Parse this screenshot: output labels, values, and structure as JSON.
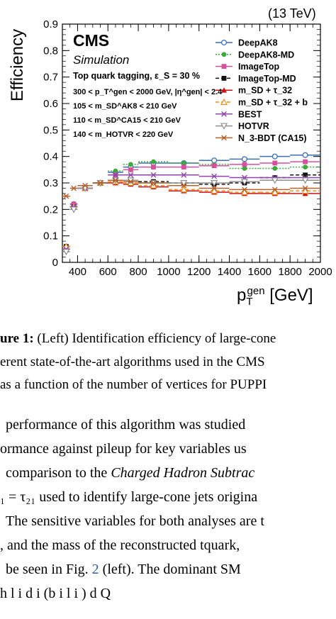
{
  "chart_data": {
    "type": "scatter",
    "energy_label": "(13 TeV)",
    "experiment": "CMS",
    "subtitle": "Simulation",
    "ylabel": "Efficiency",
    "xlabel_main": "p",
    "xlabel_sup": "gen",
    "xlabel_sub": "T",
    "xlabel_unit": "[GeV]",
    "xlim": [
      300,
      2000
    ],
    "ylim": [
      0,
      0.9
    ],
    "xticks": [
      400,
      600,
      800,
      1000,
      1200,
      1400,
      1600,
      1800,
      2000
    ],
    "yticks": [
      0,
      0.1,
      0.2,
      0.3,
      0.4,
      0.5,
      0.6,
      0.7,
      0.8,
      0.9
    ],
    "annotations": [
      "Top quark tagging,  ε_S = 30 %",
      "300 < p_T^gen < 2000 GeV, |η^gen| < 2.4",
      "105 < m_SD^AK8 < 210 GeV",
      "110 < m_SD^CA15 < 210 GeV",
      "140 < m_HOTVR < 220 GeV"
    ],
    "bins": [
      [
        300,
        350
      ],
      [
        350,
        400
      ],
      [
        400,
        500
      ],
      [
        500,
        600
      ],
      [
        600,
        700
      ],
      [
        700,
        800
      ],
      [
        800,
        1000
      ],
      [
        1000,
        1200
      ],
      [
        1200,
        1400
      ],
      [
        1400,
        1600
      ],
      [
        1600,
        1800
      ],
      [
        1800,
        2000
      ]
    ],
    "series": [
      {
        "name": "DeepAK8",
        "color": "#3a6fb5",
        "marker": "circle-open",
        "dash": "solid",
        "values": [
          0.05,
          0.22,
          0.28,
          0.3,
          0.34,
          0.36,
          0.375,
          0.375,
          0.385,
          0.39,
          0.4,
          0.405
        ]
      },
      {
        "name": "DeepAK8-MD",
        "color": "#3aaa3a",
        "marker": "circle-filled",
        "dash": "dotted",
        "values": [
          0.06,
          0.21,
          0.28,
          0.3,
          0.345,
          0.37,
          0.38,
          0.375,
          0.37,
          0.355,
          0.355,
          0.36
        ]
      },
      {
        "name": "ImageTop",
        "color": "#d94fa0",
        "marker": "square-filled",
        "dash": "solid",
        "values": [
          0.05,
          0.22,
          0.28,
          0.3,
          0.33,
          0.35,
          0.36,
          0.36,
          0.365,
          0.37,
          0.375,
          0.38
        ]
      },
      {
        "name": "ImageTop-MD",
        "color": "#111111",
        "marker": "square-filled",
        "dash": "dashed",
        "values": [
          0.06,
          0.21,
          0.28,
          0.3,
          0.31,
          0.31,
          0.305,
          0.3,
          0.295,
          0.3,
          0.32,
          0.33
        ]
      },
      {
        "name": "m_SD + τ_32",
        "color": "#d01010",
        "marker": "triangle-filled",
        "dash": "solid",
        "values": [
          0.06,
          0.21,
          0.28,
          0.3,
          0.3,
          0.295,
          0.285,
          0.27,
          0.265,
          0.26,
          0.26,
          0.26
        ]
      },
      {
        "name": "m_SD + τ_32 + b",
        "color": "#e89020",
        "marker": "triangle-open",
        "dash": "dashed",
        "values": [
          0.06,
          0.21,
          0.28,
          0.3,
          0.305,
          0.3,
          0.29,
          0.275,
          0.27,
          0.265,
          0.265,
          0.27
        ]
      },
      {
        "name": "BEST",
        "color": "#8e44ad",
        "marker": "cross",
        "dash": "solid",
        "values": [
          0.05,
          0.21,
          0.28,
          0.3,
          0.33,
          0.33,
          0.33,
          0.33,
          0.325,
          0.32,
          0.32,
          0.32
        ]
      },
      {
        "name": "HOTVR",
        "color": "#909090",
        "marker": "triangle-down-open",
        "dash": "solid",
        "values": [
          0.04,
          0.2,
          0.28,
          0.3,
          0.31,
          0.31,
          0.3,
          0.3,
          0.3,
          0.305,
          0.31,
          0.31
        ]
      },
      {
        "name": "N_3-BDT (CA15)",
        "color": "#b8612a",
        "marker": "cross",
        "dash": "solid",
        "values": [
          0.25,
          0.28,
          0.29,
          0.3,
          0.31,
          0.305,
          0.3,
          0.29,
          0.28,
          0.275,
          0.275,
          0.28
        ]
      }
    ],
    "legend": "top-right"
  },
  "caption": {
    "label": "ure 1:",
    "line1": " (Left) Identification efficiency of large-cone",
    "line2": "erent state-of-the-art algorithms used in the CMS",
    "line3": "as a function of the number of vertices for PUPPI"
  },
  "body": {
    "line1": "performance of this algorithm was studied",
    "line2_a": "ormance against pileup for key variables us",
    "line3_a": "comparison to the ",
    "line3_b": "Charged Hadron Subtrac",
    "line4": "₁ = τ₂₁ used to identify large-cone jets origina",
    "line5": "The sensitive variables for both analyses are t",
    "line6": ", and the mass of the reconstructed tquark,",
    "line7_a": "be seen in Fig. ",
    "line7_link": "2",
    "line7_b": " (left).  The dominant SM",
    "line8": "h  l    i      d  i    (b  i         l  i )     d Q"
  }
}
